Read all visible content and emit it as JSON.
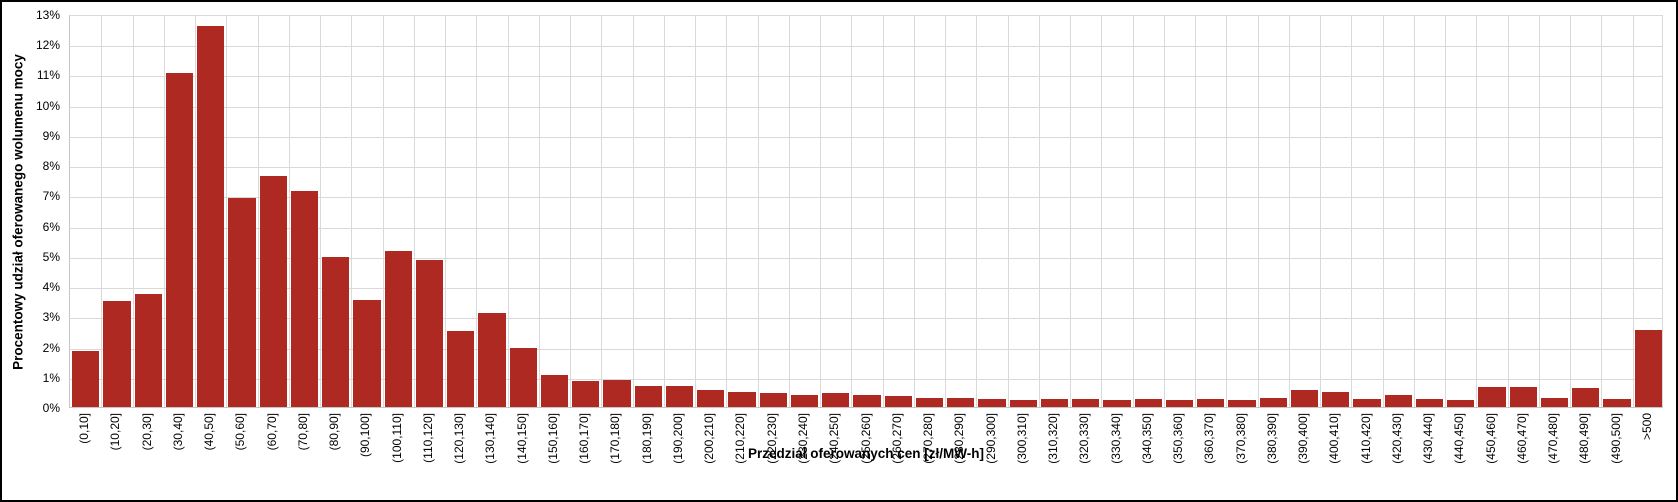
{
  "chart_data": {
    "type": "bar",
    "title": "",
    "xlabel": "Przedział oferowanych cen [zł/MW-h]",
    "ylabel": "Procentowy udział oferowanego wolumenu mocy",
    "categories": [
      "(0,10]",
      "(10,20]",
      "(20,30]",
      "(30,40]",
      "(40,50]",
      "(50,60]",
      "(60,70]",
      "(70,80]",
      "(80,90]",
      "(90,100]",
      "(100,110]",
      "(110,120]",
      "(120,130]",
      "(130,140]",
      "(140,150]",
      "(150,160]",
      "(160,170]",
      "(170,180]",
      "(180,190]",
      "(190,200]",
      "(200,210]",
      "(210,220]",
      "(220,230]",
      "(230,240]",
      "(240,250]",
      "(250,260]",
      "(260,270]",
      "(270,280]",
      "(280,290]",
      "(290,300]",
      "(300,310]",
      "(310,320]",
      "(320,330]",
      "(330,340]",
      "(340,350]",
      "(350,360]",
      "(360,370]",
      "(370,380]",
      "(380,390]",
      "(390,400]",
      "(400,410]",
      "(410,420]",
      "(420,430]",
      "(430,440]",
      "(440,450]",
      "(450,460]",
      "(460,470]",
      "(470,480]",
      "(480,490]",
      "(490,500]",
      ">500"
    ],
    "values": [
      1.85,
      3.5,
      3.75,
      11.05,
      12.6,
      6.9,
      7.65,
      7.15,
      4.95,
      3.55,
      5.15,
      4.85,
      2.5,
      3.1,
      1.95,
      1.05,
      0.85,
      0.9,
      0.7,
      0.7,
      0.55,
      0.5,
      0.45,
      0.4,
      0.45,
      0.4,
      0.35,
      0.3,
      0.3,
      0.25,
      0.22,
      0.25,
      0.25,
      0.22,
      0.27,
      0.23,
      0.26,
      0.24,
      0.31,
      0.55,
      0.5,
      0.25,
      0.4,
      0.27,
      0.22,
      0.65,
      0.67,
      0.31,
      0.62,
      0.25,
      2.55
    ],
    "ylim": [
      0,
      13
    ],
    "ytick_step": 1,
    "ytick_labels": [
      "0%",
      "1%",
      "2%",
      "3%",
      "4%",
      "5%",
      "6%",
      "7%",
      "8%",
      "9%",
      "10%",
      "11%",
      "12%",
      "13%"
    ],
    "legend": "none",
    "grid": "both",
    "bar_color": "#AF2923",
    "gridline_color": "#D9D9D9",
    "axis_line_color": "#C6C6C6",
    "text_color": "#000000",
    "background_color": "#FFFFFF",
    "outer_border_color": "#000000"
  }
}
